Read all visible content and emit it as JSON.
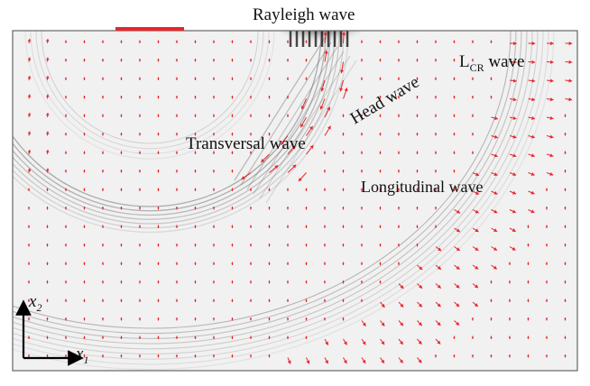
{
  "labels": {
    "rayleigh": "Rayleigh wave",
    "lcr_main": "L",
    "lcr_sub": "CR",
    "lcr_tail": " wave",
    "head": "Head wave",
    "transversal": "Transversal wave",
    "longitudinal": "Longitudinal wave"
  },
  "axes": {
    "x_var": "x",
    "x_sub": "1",
    "y_var": "x",
    "y_sub": "2"
  },
  "colors": {
    "arrow": "#e8262b",
    "source_bar": "#e8262b",
    "frame": "#666666",
    "field_bg": "#f1f1f1",
    "wavefront": "#6f6f6f",
    "axis": "#000000"
  }
}
